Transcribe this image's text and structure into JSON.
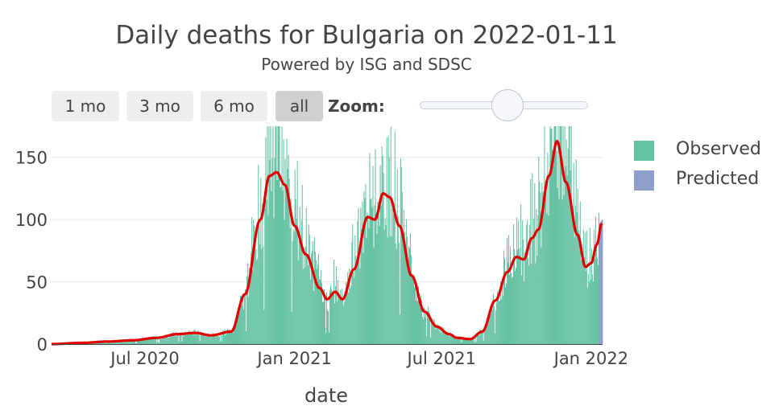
{
  "title": "Daily deaths for Bulgaria on 2022-01-11",
  "subtitle": "Powered by ISG and SDSC",
  "range_buttons": [
    {
      "label": "1 mo",
      "active": false
    },
    {
      "label": "3 mo",
      "active": false
    },
    {
      "label": "6 mo",
      "active": false
    },
    {
      "label": "all",
      "active": true
    }
  ],
  "zoom_label": "Zoom:",
  "legend": [
    {
      "label": "Observed",
      "color": "#66c2a5"
    },
    {
      "label": "Predicted",
      "color": "#8da0cb"
    }
  ],
  "colors": {
    "observed": "#66c2a5",
    "predicted": "#8da0cb",
    "trend": "#e00000",
    "grid": "#e6e6e6"
  },
  "chart_data": {
    "type": "bar",
    "title": "Daily deaths for Bulgaria on 2022-01-11",
    "xlabel": "date",
    "ylabel": "",
    "x_range": [
      "2020-03-08",
      "2022-01-15"
    ],
    "ylim": [
      0,
      175
    ],
    "y_ticks": [
      0,
      50,
      100,
      150
    ],
    "x_ticks": [
      {
        "date": "2020-07-01",
        "label": "Jul 2020"
      },
      {
        "date": "2021-01-01",
        "label": "Jan 2021"
      },
      {
        "date": "2021-07-01",
        "label": "Jul 2021"
      },
      {
        "date": "2022-01-01",
        "label": "Jan 2022"
      }
    ],
    "observed_start": "2020-03-08",
    "predicted_start": "2022-01-11",
    "observed_weekly_avg_anchors": [
      [
        "2020-03-08",
        0
      ],
      [
        "2020-04-15",
        1
      ],
      [
        "2020-05-15",
        2
      ],
      [
        "2020-06-15",
        3
      ],
      [
        "2020-07-15",
        5
      ],
      [
        "2020-08-10",
        8
      ],
      [
        "2020-09-01",
        9
      ],
      [
        "2020-09-20",
        7
      ],
      [
        "2020-10-15",
        10
      ],
      [
        "2020-11-01",
        40
      ],
      [
        "2020-11-20",
        100
      ],
      [
        "2020-12-01",
        135
      ],
      [
        "2020-12-10",
        138
      ],
      [
        "2020-12-20",
        128
      ],
      [
        "2021-01-01",
        95
      ],
      [
        "2021-01-15",
        72
      ],
      [
        "2021-02-01",
        45
      ],
      [
        "2021-02-10",
        36
      ],
      [
        "2021-02-20",
        42
      ],
      [
        "2021-03-01",
        36
      ],
      [
        "2021-03-15",
        60
      ],
      [
        "2021-04-01",
        102
      ],
      [
        "2021-04-10",
        100
      ],
      [
        "2021-04-20",
        121
      ],
      [
        "2021-04-28",
        118
      ],
      [
        "2021-05-10",
        95
      ],
      [
        "2021-05-25",
        55
      ],
      [
        "2021-06-10",
        26
      ],
      [
        "2021-06-25",
        14
      ],
      [
        "2021-07-10",
        8
      ],
      [
        "2021-07-20",
        5
      ],
      [
        "2021-08-05",
        4
      ],
      [
        "2021-08-20",
        10
      ],
      [
        "2021-09-05",
        35
      ],
      [
        "2021-09-20",
        58
      ],
      [
        "2021-10-01",
        70
      ],
      [
        "2021-10-10",
        68
      ],
      [
        "2021-10-20",
        85
      ],
      [
        "2021-10-28",
        92
      ],
      [
        "2021-11-10",
        135
      ],
      [
        "2021-11-20",
        163
      ],
      [
        "2021-12-01",
        130
      ],
      [
        "2021-12-15",
        88
      ],
      [
        "2021-12-25",
        62
      ],
      [
        "2022-01-01",
        65
      ],
      [
        "2022-01-08",
        80
      ],
      [
        "2022-01-14",
        97
      ]
    ],
    "predicted_values": [
      {
        "date": "2022-01-11",
        "value": 97
      },
      {
        "date": "2022-01-12",
        "value": 98
      },
      {
        "date": "2022-01-13",
        "value": 99
      },
      {
        "date": "2022-01-14",
        "value": 100
      }
    ],
    "series": [
      {
        "name": "Observed",
        "kind": "daily bars, 2020-03-08 to 2022-01-10, peaks clipped at 175"
      },
      {
        "name": "Predicted",
        "kind": "daily bars, 2022-01-11 to 2022-01-14"
      },
      {
        "name": "7-day average",
        "kind": "line"
      }
    ]
  }
}
